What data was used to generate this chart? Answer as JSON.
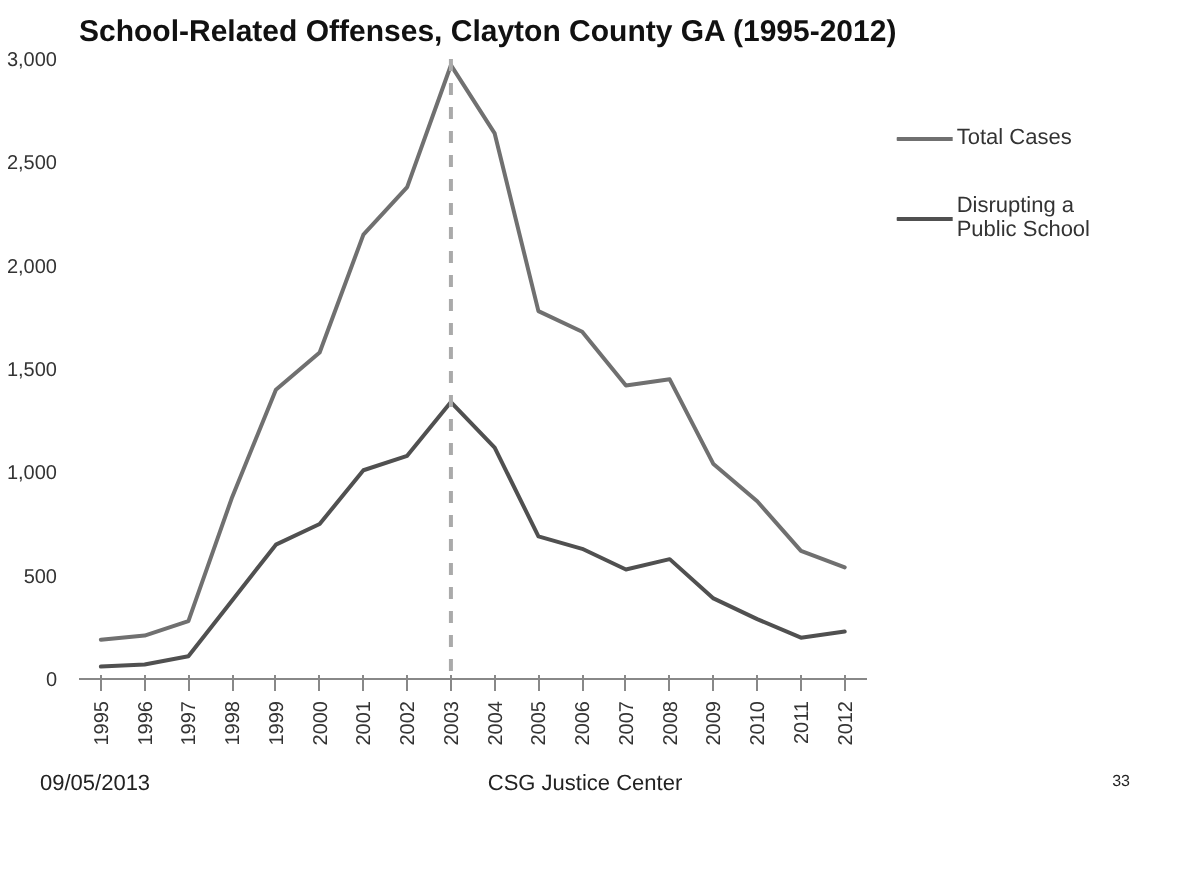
{
  "chart_data": {
    "type": "line",
    "title": "School-Related Offenses, Clayton County GA (1995-2012)",
    "categories": [
      "1995",
      "1996",
      "1997",
      "1998",
      "1999",
      "2000",
      "2001",
      "2002",
      "2003",
      "2004",
      "2005",
      "2006",
      "2007",
      "2008",
      "2009",
      "2010",
      "2011",
      "2012"
    ],
    "series": [
      {
        "name": "Total Cases",
        "color": "#707070",
        "values": [
          190,
          210,
          280,
          880,
          1400,
          1580,
          2150,
          2380,
          2970,
          2640,
          1780,
          1680,
          1420,
          1450,
          1040,
          860,
          620,
          540
        ]
      },
      {
        "name": "Disrupting a Public School",
        "color": "#505050",
        "values": [
          60,
          70,
          110,
          380,
          650,
          750,
          1010,
          1080,
          1340,
          1120,
          690,
          630,
          530,
          580,
          390,
          290,
          200,
          230
        ]
      }
    ],
    "ylim": [
      0,
      3000
    ],
    "yticks": [
      0,
      {
        "value": 500,
        "label": "500"
      },
      {
        "value": 1000,
        "label": "1,000"
      },
      {
        "value": 1500,
        "label": "1,500"
      },
      {
        "value": 2000,
        "label": "2,000"
      },
      {
        "value": 2500,
        "label": "2,500"
      },
      {
        "value": 3000,
        "label": "3,000"
      }
    ],
    "ref_lines": [
      {
        "axis": "x",
        "value": "2003",
        "color": "#aaaaaa",
        "line_style": "dashed"
      }
    ],
    "grid": false,
    "legend": "right",
    "marker": "none",
    "line_style": "solid",
    "annotations": [
      "09/05/2013",
      "CSG Justice Center",
      "33"
    ]
  }
}
